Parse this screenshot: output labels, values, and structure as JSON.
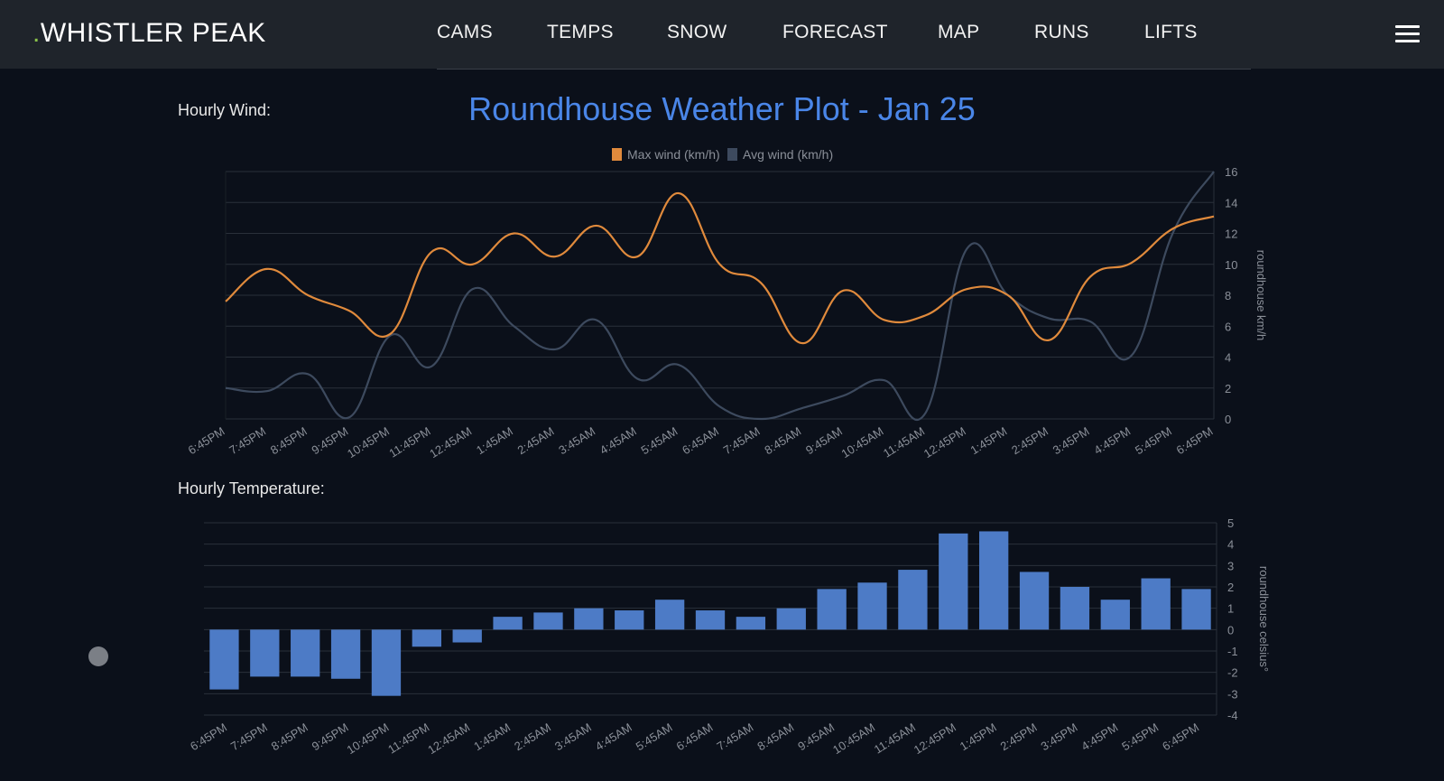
{
  "header": {
    "brand_dot": ".",
    "brand": "WHISTLER PEAK",
    "nav": [
      "CAMS",
      "TEMPS",
      "SNOW",
      "FORECAST",
      "MAP",
      "RUNS",
      "LIFTS"
    ],
    "menu_icon": "hamburger-menu-icon"
  },
  "sections": {
    "wind_label": "Hourly Wind:",
    "temp_label": "Hourly Temperature:"
  },
  "colors": {
    "max_wind": "#e08a3c",
    "avg_wind": "#3d4a5e",
    "temp_bar": "#4d7bc6",
    "title": "#4a86e8",
    "brand_dot": "#8bc34a"
  },
  "chart_data": [
    {
      "type": "line",
      "title": "Roundhouse Weather Plot - Jan 25",
      "ylabel": "roundhouse km/h",
      "ylim": [
        0,
        16
      ],
      "yticks": [
        0,
        2,
        4,
        6,
        8,
        10,
        12,
        14,
        16
      ],
      "legend_position": "top",
      "grid": true,
      "categories": [
        "6:45PM",
        "7:45PM",
        "8:45PM",
        "9:45PM",
        "10:45PM",
        "11:45PM",
        "12:45AM",
        "1:45AM",
        "2:45AM",
        "3:45AM",
        "4:45AM",
        "5:45AM",
        "6:45AM",
        "7:45AM",
        "8:45AM",
        "9:45AM",
        "10:45AM",
        "11:45AM",
        "12:45PM",
        "1:45PM",
        "2:45PM",
        "3:45PM",
        "4:45PM",
        "5:45PM",
        "6:45PM"
      ],
      "series": [
        {
          "name": "Max wind (km/h)",
          "values": [
            7.6,
            9.7,
            8.0,
            7.0,
            5.5,
            10.8,
            10.0,
            12.0,
            10.5,
            12.5,
            10.5,
            14.6,
            10.0,
            8.8,
            4.9,
            8.3,
            6.4,
            6.7,
            8.4,
            8.0,
            5.1,
            9.2,
            10.1,
            12.3,
            13.1
          ]
        },
        {
          "name": "Avg wind (km/h)",
          "values": [
            2.0,
            1.8,
            2.9,
            0.1,
            5.4,
            3.4,
            8.4,
            6.0,
            4.5,
            6.4,
            2.6,
            3.5,
            0.8,
            0.0,
            0.7,
            1.5,
            2.5,
            0.4,
            11.0,
            8.0,
            6.5,
            6.3,
            4.1,
            12.0,
            16.0
          ]
        }
      ]
    },
    {
      "type": "bar",
      "ylabel": "roundhouse celsius°",
      "ylim": [
        -4,
        5
      ],
      "yticks": [
        -4,
        -3,
        -2,
        -1,
        0,
        1,
        2,
        3,
        4,
        5
      ],
      "grid": true,
      "categories": [
        "6:45PM",
        "7:45PM",
        "8:45PM",
        "9:45PM",
        "10:45PM",
        "11:45PM",
        "12:45AM",
        "1:45AM",
        "2:45AM",
        "3:45AM",
        "4:45AM",
        "5:45AM",
        "6:45AM",
        "7:45AM",
        "8:45AM",
        "9:45AM",
        "10:45AM",
        "11:45AM",
        "12:45PM",
        "1:45PM",
        "2:45PM",
        "3:45PM",
        "4:45PM",
        "5:45PM",
        "6:45PM"
      ],
      "values": [
        -2.8,
        -2.2,
        -2.2,
        -2.3,
        -3.1,
        -0.8,
        -0.6,
        0.6,
        0.8,
        1.0,
        0.9,
        1.4,
        0.9,
        0.6,
        1.0,
        1.9,
        2.2,
        2.8,
        4.5,
        4.6,
        2.7,
        2.0,
        1.4,
        2.4,
        1.9
      ]
    }
  ]
}
